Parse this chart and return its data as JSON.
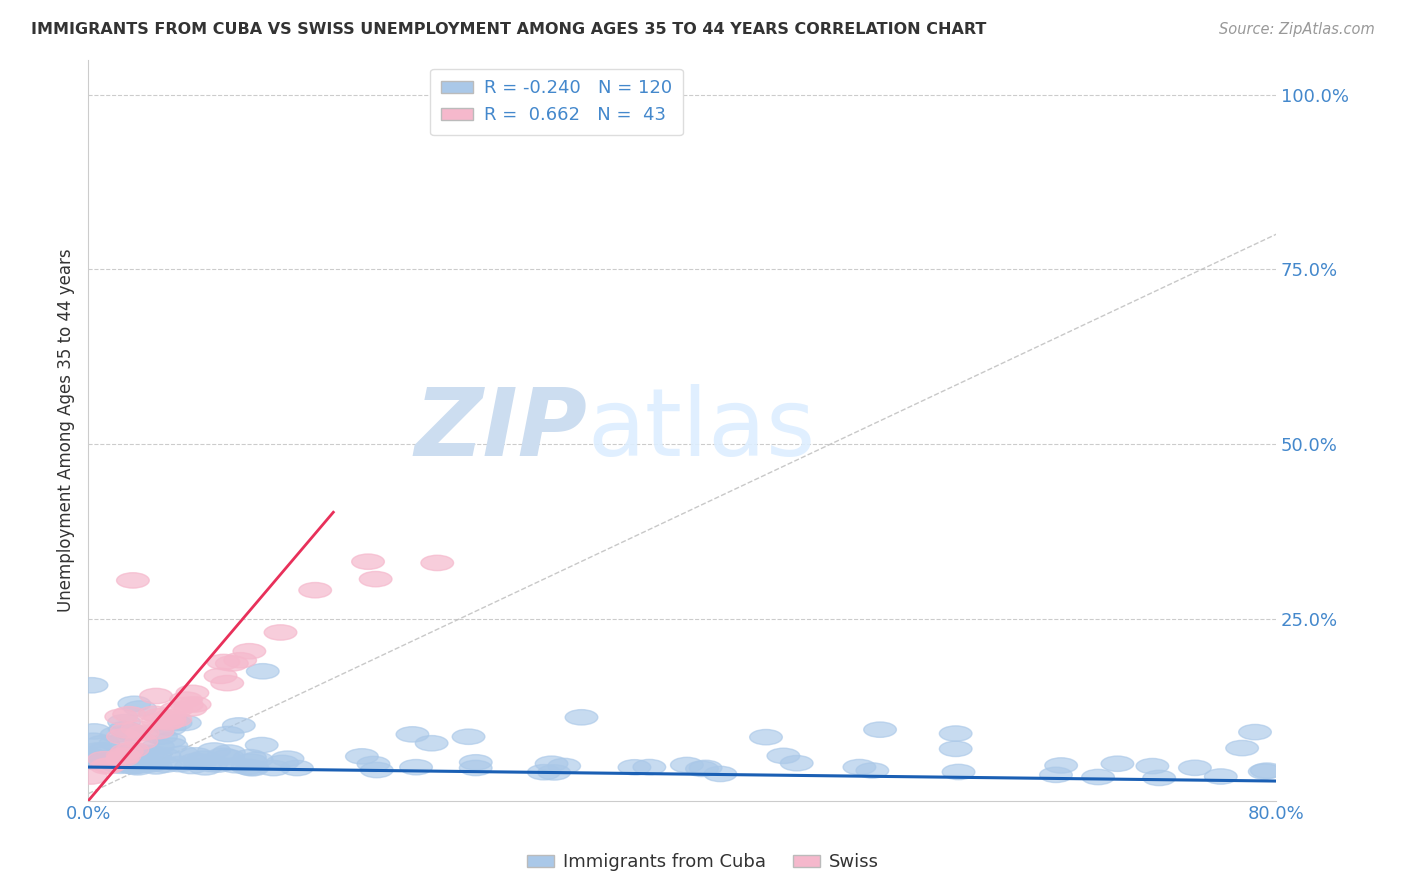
{
  "title": "IMMIGRANTS FROM CUBA VS SWISS UNEMPLOYMENT AMONG AGES 35 TO 44 YEARS CORRELATION CHART",
  "source": "Source: ZipAtlas.com",
  "ylabel": "Unemployment Among Ages 35 to 44 years",
  "xlim": [
    0.0,
    0.8
  ],
  "ylim": [
    -0.01,
    1.05
  ],
  "ytick_vals": [
    0.0,
    0.25,
    0.5,
    0.75,
    1.0
  ],
  "right_ytick_labels": [
    "",
    "25.0%",
    "50.0%",
    "75.0%",
    "100.0%"
  ],
  "cuba_R": -0.24,
  "cuba_N": 120,
  "swiss_R": 0.662,
  "swiss_N": 43,
  "cuba_color": "#aac8e8",
  "swiss_color": "#f5b8cc",
  "cuba_line_color": "#1a5fb4",
  "swiss_line_color": "#e8305a",
  "diagonal_color": "#bbbbbb",
  "watermark_zip": "ZIP",
  "watermark_atlas": "atlas",
  "legend_label_cuba": "Immigrants from Cuba",
  "legend_label_swiss": "Swiss",
  "title_color": "#333333",
  "axis_label_color": "#4488cc",
  "background_color": "#ffffff",
  "grid_color": "#cccccc",
  "cuba_line_start_x": 0.0,
  "cuba_line_end_x": 0.8,
  "cuba_line_slope": -0.025,
  "cuba_line_intercept": 0.038,
  "swiss_line_start_x": 0.0,
  "swiss_line_end_x": 0.165,
  "swiss_line_slope": 2.5,
  "swiss_line_intercept": -0.01
}
